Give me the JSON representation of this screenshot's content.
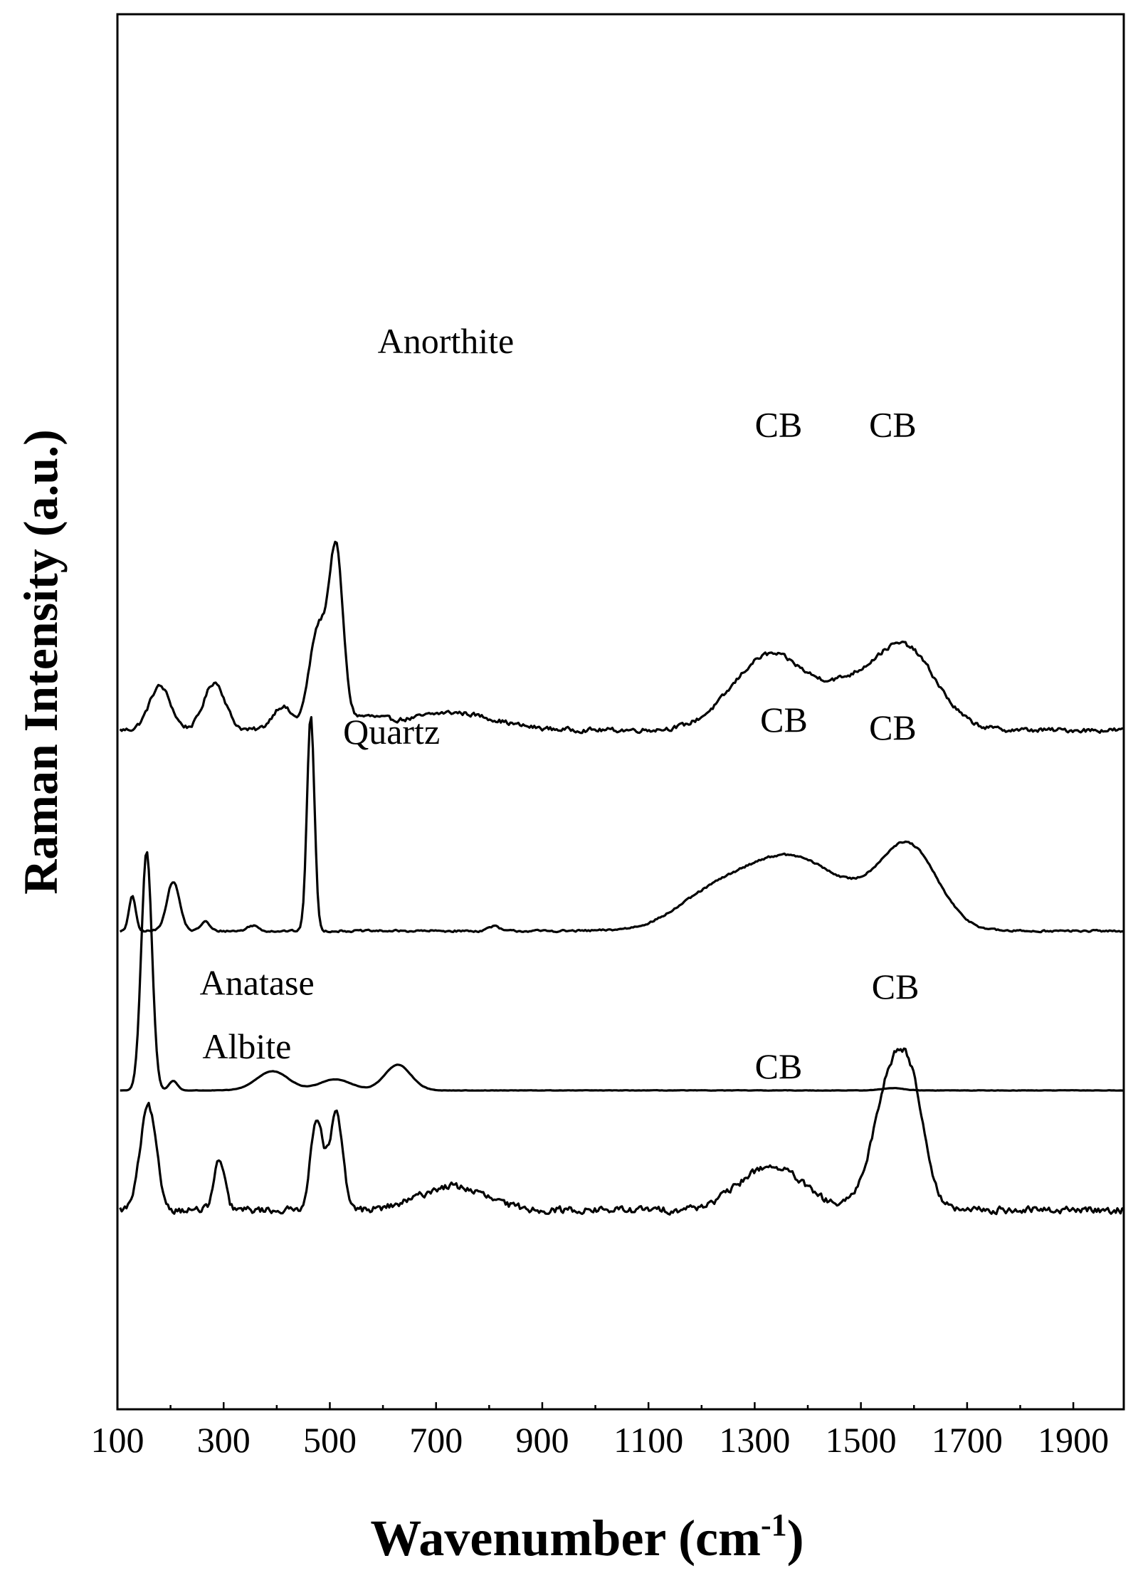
{
  "chart_data": {
    "type": "line",
    "xlabel": "Wavenumber (cm-1)",
    "xlabel_parts": {
      "main": "Wavenumber (cm",
      "sup": "-1",
      "close": ")"
    },
    "ylabel": "Raman Intensity (a.u.)",
    "xlim": [
      100,
      1995
    ],
    "xticks": [
      100,
      300,
      500,
      700,
      900,
      1100,
      1300,
      1500,
      1700,
      1900
    ],
    "yticks": [],
    "grid": false,
    "legend": "none",
    "series_color": "#000000",
    "series": [
      {
        "name": "Anorthite",
        "offset": 5.9,
        "baseline": 0.12,
        "noise": 0.045,
        "peaks": [
          [
            180,
            0.55,
            20
          ],
          [
            283,
            0.6,
            20
          ],
          [
            410,
            0.3,
            18
          ],
          [
            478,
            1.25,
            17
          ],
          [
            512,
            2.1,
            13
          ],
          [
            560,
            0.15,
            40
          ],
          [
            730,
            0.22,
            80
          ],
          [
            1330,
            0.95,
            70
          ],
          [
            1470,
            0.35,
            50
          ],
          [
            1580,
            1.05,
            60
          ]
        ],
        "annotations": [
          {
            "label": "Anorthite",
            "x": 590,
            "y": 10.75,
            "anchor": "start"
          },
          {
            "label": "CB",
            "x": 1345,
            "y": 9.7,
            "anchor": "middle"
          },
          {
            "label": "CB",
            "x": 1560,
            "y": 9.7,
            "anchor": "middle"
          }
        ]
      },
      {
        "name": "Quartz",
        "offset": 3.5,
        "baseline": 0.0,
        "noise": 0.02,
        "peaks": [
          [
            128,
            0.45,
            6
          ],
          [
            205,
            0.62,
            12
          ],
          [
            265,
            0.12,
            8
          ],
          [
            355,
            0.07,
            10
          ],
          [
            464,
            2.7,
            7
          ],
          [
            808,
            0.06,
            10
          ],
          [
            1200,
            0.18,
            60
          ],
          [
            1360,
            0.95,
            110
          ],
          [
            1590,
            1.0,
            55
          ]
        ],
        "annotations": [
          {
            "label": "Quartz",
            "x": 525,
            "y": 5.85,
            "anchor": "start"
          },
          {
            "label": "CB",
            "x": 1355,
            "y": 6.0,
            "anchor": "middle"
          },
          {
            "label": "CB",
            "x": 1560,
            "y": 5.9,
            "anchor": "middle"
          }
        ]
      },
      {
        "name": "Anatase",
        "offset": 1.5,
        "baseline": 0.0,
        "noise": 0.004,
        "peaks": [
          [
            155,
            3.0,
            10
          ],
          [
            205,
            0.12,
            8
          ],
          [
            392,
            0.24,
            30
          ],
          [
            510,
            0.14,
            30
          ],
          [
            628,
            0.32,
            25
          ],
          [
            1560,
            0.03,
            20
          ]
        ],
        "annotations": [
          {
            "label": "Anatase",
            "x": 255,
            "y": 2.7,
            "anchor": "start"
          }
        ]
      },
      {
        "name": "Albite",
        "offset": 0.0,
        "baseline": 0.0,
        "noise": 0.07,
        "peaks": [
          [
            158,
            1.3,
            15
          ],
          [
            292,
            0.62,
            10
          ],
          [
            476,
            1.15,
            12
          ],
          [
            512,
            1.2,
            12
          ],
          [
            730,
            0.3,
            60
          ],
          [
            1330,
            0.55,
            60
          ],
          [
            1560,
            1.7,
            35
          ],
          [
            1600,
            0.8,
            25
          ]
        ],
        "annotations": [
          {
            "label": "Albite",
            "x": 260,
            "y": 1.9,
            "anchor": "start"
          },
          {
            "label": "CB",
            "x": 1345,
            "y": 1.65,
            "anchor": "middle"
          },
          {
            "label": "CB",
            "x": 1565,
            "y": 2.65,
            "anchor": "middle"
          }
        ]
      }
    ]
  }
}
